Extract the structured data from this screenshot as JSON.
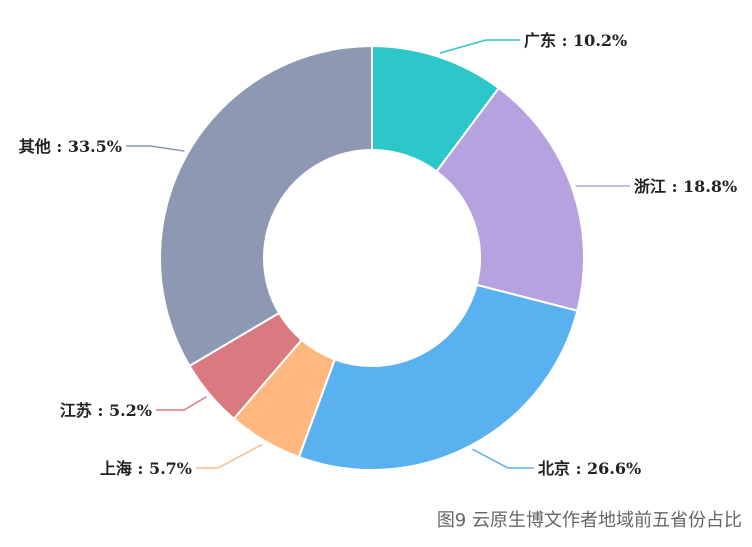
{
  "chart_data": {
    "type": "pie",
    "variant": "donut",
    "categories": [
      "广东",
      "浙江",
      "北京",
      "上海",
      "江苏",
      "其他"
    ],
    "values": [
      10.2,
      18.8,
      26.6,
      5.7,
      5.2,
      33.5
    ],
    "labels": [
      "广东 : 10.2%",
      "浙江 : 18.8%",
      "北京 : 26.6%",
      "上海 : 5.7%",
      "江苏 : 5.2%",
      "其他 : 33.5%"
    ],
    "colors": [
      "#2ec7c9",
      "#b6a2de",
      "#5ab1ef",
      "#ffb980",
      "#d87a80",
      "#8d98b3"
    ],
    "unit": "%",
    "legend": "none",
    "start": "top, clockwise"
  },
  "caption": "图9  云原生博文作者地域前五省份占比"
}
